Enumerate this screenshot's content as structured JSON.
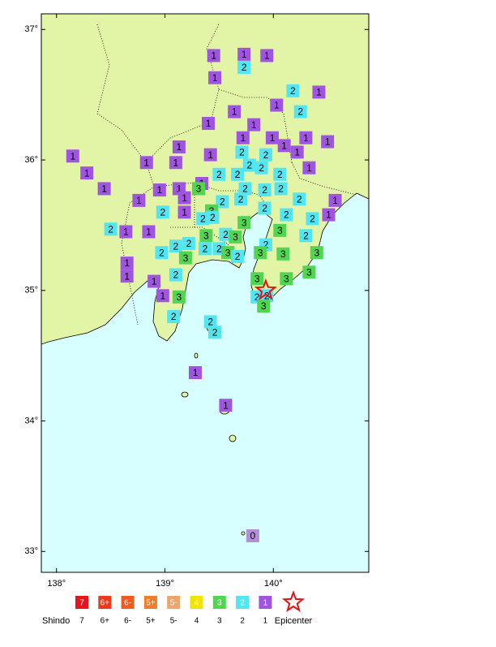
{
  "map": {
    "lon_range": [
      137.86,
      140.88
    ],
    "lat_range": [
      32.84,
      37.12
    ],
    "lat_ticks": [
      {
        "value": 37,
        "label": "37°"
      },
      {
        "value": 36,
        "label": "36°"
      },
      {
        "value": 35,
        "label": "35°"
      },
      {
        "value": 34,
        "label": "34°"
      },
      {
        "value": 33,
        "label": "33°"
      }
    ],
    "lon_ticks": [
      {
        "value": 138,
        "label": "138°"
      },
      {
        "value": 139,
        "label": "139°"
      },
      {
        "value": 140,
        "label": "140°"
      }
    ],
    "epicenter": {
      "lon": 139.93,
      "lat": 35.0
    },
    "stations": [
      {
        "lon": 139.45,
        "lat": 36.8,
        "shindo": 1
      },
      {
        "lon": 139.73,
        "lat": 36.81,
        "shindo": 1
      },
      {
        "lon": 139.94,
        "lat": 36.8,
        "shindo": 1
      },
      {
        "lon": 139.73,
        "lat": 36.71,
        "shindo": 2
      },
      {
        "lon": 139.46,
        "lat": 36.63,
        "shindo": 1
      },
      {
        "lon": 140.18,
        "lat": 36.53,
        "shindo": 2
      },
      {
        "lon": 140.42,
        "lat": 36.52,
        "shindo": 1
      },
      {
        "lon": 140.03,
        "lat": 36.42,
        "shindo": 1
      },
      {
        "lon": 139.64,
        "lat": 36.37,
        "shindo": 1
      },
      {
        "lon": 140.25,
        "lat": 36.37,
        "shindo": 2
      },
      {
        "lon": 139.4,
        "lat": 36.28,
        "shindo": 1
      },
      {
        "lon": 139.82,
        "lat": 36.27,
        "shindo": 1
      },
      {
        "lon": 139.72,
        "lat": 36.17,
        "shindo": 1
      },
      {
        "lon": 139.99,
        "lat": 36.17,
        "shindo": 1
      },
      {
        "lon": 140.3,
        "lat": 36.17,
        "shindo": 1
      },
      {
        "lon": 140.5,
        "lat": 36.14,
        "shindo": 1
      },
      {
        "lon": 138.15,
        "lat": 36.03,
        "shindo": 1
      },
      {
        "lon": 139.13,
        "lat": 36.1,
        "shindo": 1
      },
      {
        "lon": 139.42,
        "lat": 36.04,
        "shindo": 1
      },
      {
        "lon": 139.71,
        "lat": 36.06,
        "shindo": 2
      },
      {
        "lon": 139.93,
        "lat": 36.04,
        "shindo": 2
      },
      {
        "lon": 140.1,
        "lat": 36.11,
        "shindo": 1
      },
      {
        "lon": 140.22,
        "lat": 36.06,
        "shindo": 1
      },
      {
        "lon": 138.83,
        "lat": 35.98,
        "shindo": 1
      },
      {
        "lon": 139.1,
        "lat": 35.98,
        "shindo": 1
      },
      {
        "lon": 139.78,
        "lat": 35.96,
        "shindo": 2
      },
      {
        "lon": 139.89,
        "lat": 35.94,
        "shindo": 2
      },
      {
        "lon": 140.33,
        "lat": 35.94,
        "shindo": 1
      },
      {
        "lon": 138.28,
        "lat": 35.9,
        "shindo": 1
      },
      {
        "lon": 139.5,
        "lat": 35.89,
        "shindo": 2
      },
      {
        "lon": 139.67,
        "lat": 35.89,
        "shindo": 2
      },
      {
        "lon": 140.06,
        "lat": 35.89,
        "shindo": 2
      },
      {
        "lon": 139.34,
        "lat": 35.82,
        "shindo": 1
      },
      {
        "lon": 139.31,
        "lat": 35.78,
        "shindo": 3
      },
      {
        "lon": 138.44,
        "lat": 35.78,
        "shindo": 1
      },
      {
        "lon": 138.95,
        "lat": 35.77,
        "shindo": 1
      },
      {
        "lon": 139.13,
        "lat": 35.78,
        "shindo": 1
      },
      {
        "lon": 139.74,
        "lat": 35.78,
        "shindo": 2
      },
      {
        "lon": 139.92,
        "lat": 35.77,
        "shindo": 2
      },
      {
        "lon": 140.07,
        "lat": 35.78,
        "shindo": 2
      },
      {
        "lon": 139.18,
        "lat": 35.71,
        "shindo": 1
      },
      {
        "lon": 138.76,
        "lat": 35.69,
        "shindo": 1
      },
      {
        "lon": 139.53,
        "lat": 35.68,
        "shindo": 2
      },
      {
        "lon": 139.7,
        "lat": 35.7,
        "shindo": 2
      },
      {
        "lon": 140.24,
        "lat": 35.7,
        "shindo": 2
      },
      {
        "lon": 140.57,
        "lat": 35.69,
        "shindo": 1
      },
      {
        "lon": 139.43,
        "lat": 35.61,
        "shindo": 3
      },
      {
        "lon": 138.98,
        "lat": 35.6,
        "shindo": 2
      },
      {
        "lon": 139.18,
        "lat": 35.6,
        "shindo": 1
      },
      {
        "lon": 139.35,
        "lat": 35.55,
        "shindo": 2
      },
      {
        "lon": 139.44,
        "lat": 35.56,
        "shindo": 2
      },
      {
        "lon": 139.92,
        "lat": 35.63,
        "shindo": 2
      },
      {
        "lon": 140.12,
        "lat": 35.58,
        "shindo": 2
      },
      {
        "lon": 140.36,
        "lat": 35.55,
        "shindo": 2
      },
      {
        "lon": 140.51,
        "lat": 35.58,
        "shindo": 1
      },
      {
        "lon": 139.73,
        "lat": 35.52,
        "shindo": 3
      },
      {
        "lon": 138.5,
        "lat": 35.47,
        "shindo": 2
      },
      {
        "lon": 138.64,
        "lat": 35.45,
        "shindo": 1
      },
      {
        "lon": 138.85,
        "lat": 35.45,
        "shindo": 1
      },
      {
        "lon": 139.38,
        "lat": 35.42,
        "shindo": 3
      },
      {
        "lon": 139.56,
        "lat": 35.43,
        "shindo": 2
      },
      {
        "lon": 139.65,
        "lat": 35.41,
        "shindo": 3
      },
      {
        "lon": 140.06,
        "lat": 35.46,
        "shindo": 3
      },
      {
        "lon": 140.3,
        "lat": 35.42,
        "shindo": 2
      },
      {
        "lon": 139.93,
        "lat": 35.35,
        "shindo": 2
      },
      {
        "lon": 139.1,
        "lat": 35.34,
        "shindo": 2
      },
      {
        "lon": 139.22,
        "lat": 35.36,
        "shindo": 2
      },
      {
        "lon": 138.97,
        "lat": 35.29,
        "shindo": 2
      },
      {
        "lon": 139.19,
        "lat": 35.25,
        "shindo": 3
      },
      {
        "lon": 139.37,
        "lat": 35.32,
        "shindo": 2
      },
      {
        "lon": 139.5,
        "lat": 35.32,
        "shindo": 2
      },
      {
        "lon": 139.58,
        "lat": 35.29,
        "shindo": 3
      },
      {
        "lon": 139.67,
        "lat": 35.26,
        "shindo": 2
      },
      {
        "lon": 139.88,
        "lat": 35.29,
        "shindo": 3
      },
      {
        "lon": 140.09,
        "lat": 35.28,
        "shindo": 3
      },
      {
        "lon": 140.4,
        "lat": 35.29,
        "shindo": 3
      },
      {
        "lon": 138.65,
        "lat": 35.21,
        "shindo": 1
      },
      {
        "lon": 138.65,
        "lat": 35.11,
        "shindo": 1
      },
      {
        "lon": 139.1,
        "lat": 35.12,
        "shindo": 2
      },
      {
        "lon": 138.9,
        "lat": 35.07,
        "shindo": 1
      },
      {
        "lon": 139.85,
        "lat": 35.09,
        "shindo": 3
      },
      {
        "lon": 140.12,
        "lat": 35.09,
        "shindo": 3
      },
      {
        "lon": 140.33,
        "lat": 35.14,
        "shindo": 3
      },
      {
        "lon": 138.98,
        "lat": 34.96,
        "shindo": 1
      },
      {
        "lon": 139.13,
        "lat": 34.95,
        "shindo": 3
      },
      {
        "lon": 139.85,
        "lat": 34.95,
        "shindo": 2
      },
      {
        "lon": 139.94,
        "lat": 34.96,
        "shindo": 2
      },
      {
        "lon": 139.91,
        "lat": 34.88,
        "shindo": 3
      },
      {
        "lon": 139.08,
        "lat": 34.8,
        "shindo": 2
      },
      {
        "lon": 139.42,
        "lat": 34.76,
        "shindo": 2
      },
      {
        "lon": 139.46,
        "lat": 34.68,
        "shindo": 2
      },
      {
        "lon": 139.28,
        "lat": 34.37,
        "shindo": 1
      },
      {
        "lon": 139.56,
        "lat": 34.12,
        "shindo": 1
      },
      {
        "lon": 139.81,
        "lat": 33.12,
        "shindo": 0
      }
    ],
    "legend": {
      "title": "Shindo",
      "epicenter_label": "Epicenter",
      "levels": [
        {
          "label": "7",
          "color": "#e8141c"
        },
        {
          "label": "6+",
          "color": "#ea3a1a"
        },
        {
          "label": "6-",
          "color": "#f05a20"
        },
        {
          "label": "5+",
          "color": "#f07c2c"
        },
        {
          "label": "5-",
          "color": "#f0a468"
        },
        {
          "label": "4",
          "color": "#f2e400"
        },
        {
          "label": "3",
          "color": "#52d652"
        },
        {
          "label": "2",
          "color": "#52e6f2"
        },
        {
          "label": "1",
          "color": "#a055e0"
        }
      ]
    }
  }
}
